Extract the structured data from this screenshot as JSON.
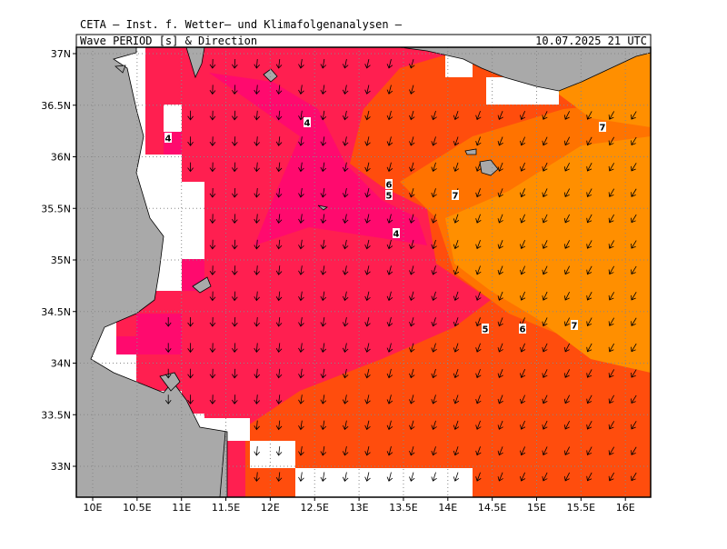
{
  "header": {
    "institute": "CETA – Inst. f. Wetter– und Klimafolgenanalysen –",
    "product": "Wave PERIOD [s] & Direction",
    "valid_time": "10.07.2025 21 UTC"
  },
  "map": {
    "lat_ticks": [
      {
        "value": 33,
        "label": "33N"
      },
      {
        "value": 33.5,
        "label": "33.5N"
      },
      {
        "value": 34,
        "label": "34N"
      },
      {
        "value": 34.5,
        "label": "34.5N"
      },
      {
        "value": 35,
        "label": "35N"
      },
      {
        "value": 35.5,
        "label": "35.5N"
      },
      {
        "value": 36,
        "label": "36N"
      },
      {
        "value": 36.5,
        "label": "36.5N"
      },
      {
        "value": 37,
        "label": "37N"
      }
    ],
    "lon_ticks": [
      {
        "value": 10,
        "label": "10E"
      },
      {
        "value": 10.5,
        "label": "10.5E"
      },
      {
        "value": 11,
        "label": "11E"
      },
      {
        "value": 11.5,
        "label": "11.5E"
      },
      {
        "value": 12,
        "label": "12E"
      },
      {
        "value": 12.5,
        "label": "12.5E"
      },
      {
        "value": 13,
        "label": "13E"
      },
      {
        "value": 13.5,
        "label": "13.5E"
      },
      {
        "value": 14,
        "label": "14E"
      },
      {
        "value": 14.5,
        "label": "14.5E"
      },
      {
        "value": 15,
        "label": "15E"
      },
      {
        "value": 15.5,
        "label": "15.5E"
      },
      {
        "value": 16,
        "label": "16E"
      }
    ],
    "contour_labels": [
      4,
      4,
      6,
      5,
      7,
      4,
      5,
      6,
      7,
      7
    ]
  }
}
